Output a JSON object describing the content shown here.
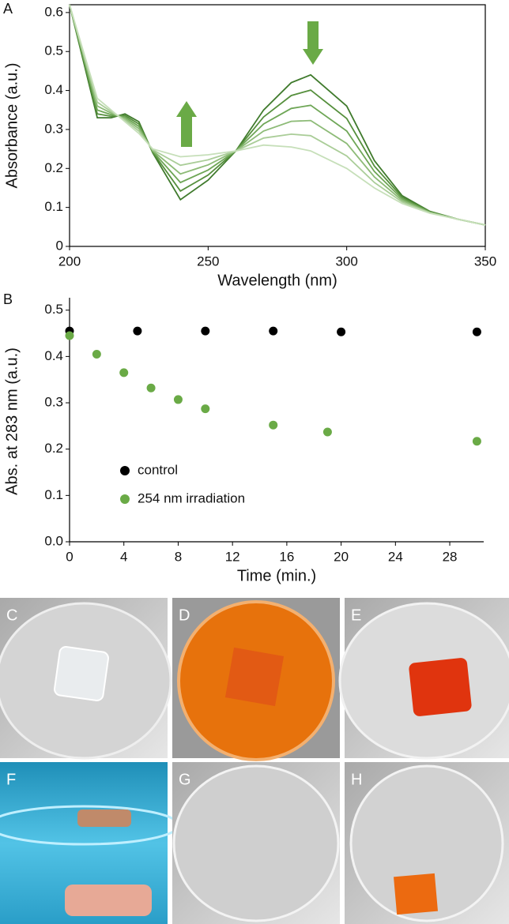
{
  "chart_data": [
    {
      "panel": "A",
      "type": "line",
      "xlabel": "Wavelength (nm)",
      "ylabel": "Absorbance (a.u.)",
      "x": [
        200,
        210,
        215,
        220,
        225,
        230,
        240,
        250,
        260,
        270,
        280,
        287,
        300,
        310,
        320,
        330,
        340,
        350
      ],
      "xlim": [
        200,
        350
      ],
      "ylim": [
        0,
        0.62
      ],
      "xticks": [
        200,
        250,
        300,
        350
      ],
      "yticks": [
        0,
        0.1,
        0.2,
        0.3,
        0.4,
        0.5,
        0.6
      ],
      "series": [
        {
          "color": "#3f7a2c",
          "values": [
            0.62,
            0.33,
            0.33,
            0.34,
            0.32,
            0.24,
            0.12,
            0.17,
            0.245,
            0.35,
            0.42,
            0.44,
            0.36,
            0.22,
            0.13,
            0.09,
            0.07,
            0.055
          ]
        },
        {
          "color": "#558f3c",
          "values": [
            0.62,
            0.34,
            0.334,
            0.336,
            0.314,
            0.242,
            0.142,
            0.183,
            0.245,
            0.332,
            0.387,
            0.401,
            0.328,
            0.206,
            0.126,
            0.089,
            0.07,
            0.055
          ]
        },
        {
          "color": "#6ea656",
          "values": [
            0.62,
            0.35,
            0.338,
            0.332,
            0.308,
            0.244,
            0.164,
            0.196,
            0.245,
            0.314,
            0.354,
            0.362,
            0.296,
            0.192,
            0.122,
            0.088,
            0.07,
            0.055
          ]
        },
        {
          "color": "#8dbb77",
          "values": [
            0.62,
            0.36,
            0.342,
            0.328,
            0.302,
            0.246,
            0.186,
            0.209,
            0.245,
            0.296,
            0.321,
            0.323,
            0.264,
            0.178,
            0.118,
            0.087,
            0.07,
            0.055
          ]
        },
        {
          "color": "#aacd98",
          "values": [
            0.62,
            0.37,
            0.346,
            0.324,
            0.296,
            0.248,
            0.208,
            0.222,
            0.245,
            0.278,
            0.288,
            0.284,
            0.232,
            0.164,
            0.114,
            0.086,
            0.07,
            0.055
          ]
        },
        {
          "color": "#c6dfb9",
          "values": [
            0.62,
            0.38,
            0.35,
            0.32,
            0.29,
            0.25,
            0.23,
            0.235,
            0.245,
            0.26,
            0.255,
            0.245,
            0.2,
            0.15,
            0.11,
            0.085,
            0.07,
            0.055
          ]
        }
      ]
    },
    {
      "panel": "B",
      "type": "scatter",
      "xlabel": "Time (min.)",
      "ylabel": "Abs. at 283 nm (a.u.)",
      "xlim": [
        0,
        30.5
      ],
      "ylim": [
        0,
        0.52
      ],
      "xticks": [
        0,
        4,
        8,
        12,
        16,
        20,
        24,
        28
      ],
      "yticks": [
        {
          "value": 0,
          "label": "0.0"
        },
        {
          "value": 0.1,
          "label": "0.1"
        },
        {
          "value": 0.2,
          "label": "0.2"
        },
        {
          "value": 0.3,
          "label": "0.3"
        },
        {
          "value": 0.4,
          "label": "0.4"
        },
        {
          "value": 0.5,
          "label": "0.5"
        }
      ],
      "legend": "lower left",
      "series": [
        {
          "name": "control",
          "color": "#000000",
          "x": [
            0,
            5,
            10,
            15,
            20,
            30
          ],
          "values": [
            0.455,
            0.455,
            0.455,
            0.455,
            0.453,
            0.453
          ]
        },
        {
          "name": "254 nm irradiation",
          "color": "#6aaa46",
          "x": [
            0,
            2,
            4,
            6,
            8,
            10,
            15,
            19,
            30
          ],
          "values": [
            0.445,
            0.405,
            0.365,
            0.332,
            0.307,
            0.287,
            0.252,
            0.237,
            0.217
          ]
        }
      ]
    }
  ],
  "photos": [
    "C",
    "D",
    "E",
    "F",
    "G",
    "H"
  ]
}
